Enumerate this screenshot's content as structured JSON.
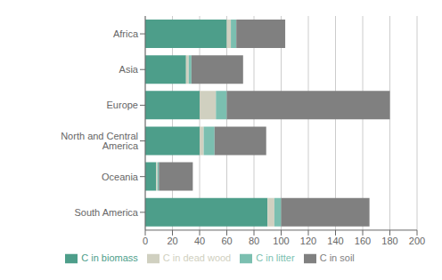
{
  "chart_data": {
    "type": "bar",
    "orientation": "horizontal",
    "stacked": true,
    "categories": [
      "South America",
      "Oceania",
      "North and Central America",
      "Europe",
      "Asia",
      "Africa"
    ],
    "series": [
      {
        "name": "C in biomass",
        "color": "#4d9e8a",
        "values": [
          90,
          8,
          40,
          40,
          30,
          60
        ]
      },
      {
        "name": "C in dead wood",
        "color": "#d0d0c0",
        "values": [
          5,
          1,
          3,
          12,
          2,
          3
        ]
      },
      {
        "name": "C in litter",
        "color": "#7bbfb0",
        "values": [
          5,
          1,
          8,
          8,
          2,
          4
        ]
      },
      {
        "name": "C in soil",
        "color": "#808080",
        "values": [
          65,
          25,
          38,
          120,
          38,
          36
        ]
      }
    ],
    "xlim": [
      0,
      200
    ],
    "xticks": [
      0,
      20,
      40,
      60,
      80,
      100,
      120,
      140,
      160,
      180,
      200
    ],
    "grid": true,
    "legend": "bottom"
  }
}
